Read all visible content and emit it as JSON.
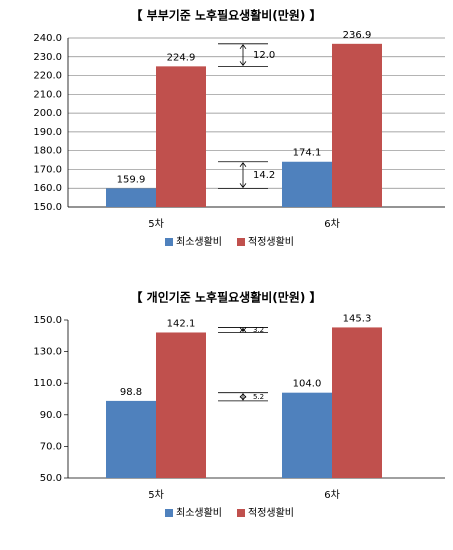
{
  "chart_data": [
    {
      "type": "bar",
      "title": "【 부부기준 노후필요생활비(만원) 】",
      "categories": [
        "5차",
        "6차"
      ],
      "series": [
        {
          "name": "최소생활비",
          "color": "#4f81bd",
          "values": [
            159.9,
            174.1
          ]
        },
        {
          "name": "적정생활비",
          "color": "#c0504d",
          "values": [
            224.9,
            236.9
          ]
        }
      ],
      "ylim": [
        150,
        240
      ],
      "yticks": [
        {
          "value": 150,
          "label": "150.0"
        },
        {
          "value": 160,
          "label": "160.0"
        },
        {
          "value": 170,
          "label": "170.0"
        },
        {
          "value": 180,
          "label": "180.0"
        },
        {
          "value": 190,
          "label": "190.0"
        },
        {
          "value": 200,
          "label": "200.0"
        },
        {
          "value": 210,
          "label": "210.0"
        },
        {
          "value": 220,
          "label": "220.0"
        },
        {
          "value": 230,
          "label": "230.0"
        },
        {
          "value": 240,
          "label": "240.0"
        }
      ],
      "annotations": [
        "12.0",
        "14.2"
      ],
      "grid": true,
      "legend": "bottom"
    },
    {
      "type": "bar",
      "title": "【 개인기준 노후필요생활비(만원) 】",
      "categories": [
        "5차",
        "6차"
      ],
      "series": [
        {
          "name": "최소생활비",
          "color": "#4f81bd",
          "values": [
            98.8,
            104
          ],
          "value_labels": [
            "98.8",
            "104.0"
          ]
        },
        {
          "name": "적정생활비",
          "color": "#c0504d",
          "values": [
            142.1,
            145.3
          ]
        }
      ],
      "ylim": [
        50,
        150
      ],
      "yticks": [
        {
          "value": 50,
          "label": "50.0"
        },
        {
          "value": 70,
          "label": "70.0"
        },
        {
          "value": 90,
          "label": "90.0"
        },
        {
          "value": 110,
          "label": "110.0"
        },
        {
          "value": 130,
          "label": "130.0"
        },
        {
          "value": 150,
          "label": "150.0"
        }
      ],
      "annotations": [
        "3.2",
        "5.2"
      ],
      "grid": false,
      "legend": "bottom"
    }
  ]
}
